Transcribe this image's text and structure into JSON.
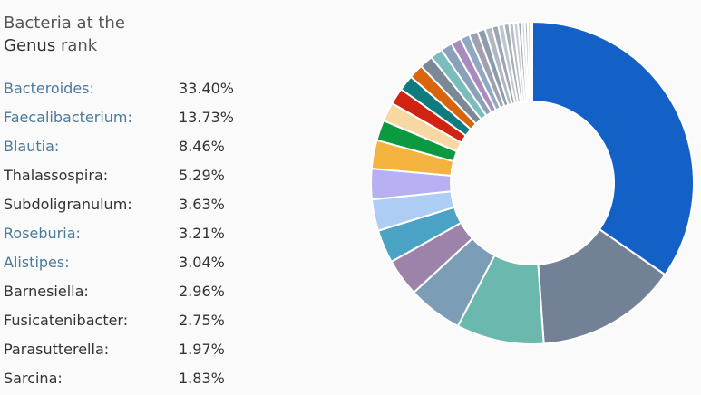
{
  "title": {
    "line1": "Bacteria at the",
    "rank_name": "Genus",
    "rank_suffix": "rank"
  },
  "rows": [
    {
      "name": "Bacteroides:",
      "percent": "33.40%",
      "link": true
    },
    {
      "name": "Faecalibacterium:",
      "percent": "13.73%",
      "link": true
    },
    {
      "name": "Blautia:",
      "percent": "8.46%",
      "link": true
    },
    {
      "name": "Thalassospira:",
      "percent": "5.29%",
      "link": false
    },
    {
      "name": "Subdoligranulum:",
      "percent": "3.63%",
      "link": false
    },
    {
      "name": "Roseburia:",
      "percent": "3.21%",
      "link": true
    },
    {
      "name": "Alistipes:",
      "percent": "3.04%",
      "link": true
    },
    {
      "name": "Barnesiella:",
      "percent": "2.96%",
      "link": false
    },
    {
      "name": "Fusicatenibacter:",
      "percent": "2.75%",
      "link": false
    },
    {
      "name": "Parasutterella:",
      "percent": "1.97%",
      "link": false
    },
    {
      "name": "Sarcina:",
      "percent": "1.83%",
      "link": false
    }
  ],
  "chart_data": {
    "type": "pie",
    "donut": true,
    "categories": [
      "Bacteroides",
      "Faecalibacterium",
      "Blautia",
      "Thalassospira",
      "Subdoligranulum",
      "Roseburia",
      "Alistipes",
      "Barnesiella",
      "Fusicatenibacter",
      "Parasutterella",
      "Sarcina"
    ],
    "values": [
      33.4,
      13.73,
      8.46,
      5.29,
      3.63,
      3.21,
      3.04,
      2.96,
      2.75,
      1.97,
      1.83
    ],
    "additional_small_values": [
      1.6,
      1.5,
      1.4,
      1.3,
      1.2,
      1.1,
      1.0,
      0.9,
      0.85,
      0.75,
      0.7,
      0.6,
      0.55,
      0.5,
      0.45,
      0.4,
      0.35,
      0.3,
      0.28,
      0.25,
      0.2
    ],
    "colors": [
      "#1360c6",
      "#738196",
      "#6bb8ae",
      "#7b9db5",
      "#9d82a9",
      "#4aa2c4",
      "#aecdf5",
      "#b7b0f2",
      "#f4b23f",
      "#0b9a3f",
      "#f8d7a3",
      "#d02311",
      "#0e7b7e",
      "#d9640b",
      "#7b8898",
      "#7bbcbc",
      "#8aa0bb",
      "#a88cbf",
      "#8fa8c4",
      "#a0a0b0",
      "#8b9cad",
      "#b0b8c4",
      "#9aa6b4",
      "#c0c6d0",
      "#a5adb8",
      "#b8bec8",
      "#c8ccd4",
      "#9fa8b5",
      "#d0d4da",
      "#b4bac4",
      "#c4c8d0",
      "#d6d9de"
    ],
    "legend": "none"
  }
}
